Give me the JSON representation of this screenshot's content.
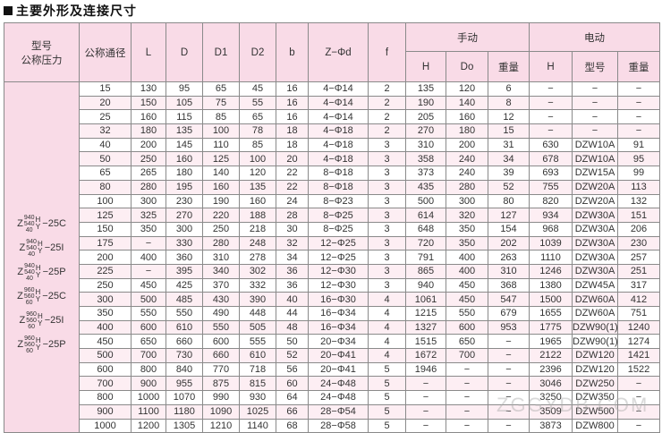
{
  "title": "主要外形及连接尺寸",
  "headers": {
    "model": "型号",
    "pressure": "公称压力",
    "dn": "公称通径",
    "L": "L",
    "D": "D",
    "D1": "D1",
    "D2": "D2",
    "b": "b",
    "zd": "Z−Φd",
    "f": "f",
    "manual": "手动",
    "electric": "电动",
    "H": "H",
    "Do": "Do",
    "weight": "重量",
    "etype": "型号"
  },
  "models": [
    {
      "z": "Z",
      "top": "940",
      "mid": "540",
      "bot": "40",
      "h": "H",
      "y": "Y",
      "suffix": "−25C"
    },
    {
      "z": "Z",
      "top": "940",
      "mid": "540",
      "bot": "40",
      "h": "H",
      "y": "Y",
      "suffix": "−25I"
    },
    {
      "z": "Z",
      "top": "940",
      "mid": "540",
      "bot": "40",
      "h": "H",
      "y": "Y",
      "suffix": "−25P"
    },
    {
      "z": "Z",
      "top": "960",
      "mid": "560",
      "bot": "60",
      "h": "H",
      "y": "Y",
      "suffix": "−25C"
    },
    {
      "z": "Z",
      "top": "960",
      "mid": "560",
      "bot": "60",
      "h": "H",
      "y": "Y",
      "suffix": "−25I"
    },
    {
      "z": "Z",
      "top": "960",
      "mid": "560",
      "bot": "60",
      "h": "H",
      "y": "Y",
      "suffix": "−25P"
    }
  ],
  "rows": [
    [
      "15",
      "130",
      "95",
      "65",
      "45",
      "16",
      "4−Φ14",
      "2",
      "135",
      "120",
      "6",
      "−",
      "−",
      "−"
    ],
    [
      "20",
      "150",
      "105",
      "75",
      "55",
      "16",
      "4−Φ14",
      "2",
      "190",
      "140",
      "8",
      "−",
      "−",
      "−"
    ],
    [
      "25",
      "160",
      "115",
      "85",
      "65",
      "16",
      "4−Φ14",
      "2",
      "205",
      "160",
      "12",
      "−",
      "−",
      "−"
    ],
    [
      "32",
      "180",
      "135",
      "100",
      "78",
      "18",
      "4−Φ18",
      "2",
      "270",
      "180",
      "15",
      "−",
      "−",
      "−"
    ],
    [
      "40",
      "200",
      "145",
      "110",
      "85",
      "18",
      "4−Φ18",
      "3",
      "310",
      "200",
      "31",
      "630",
      "DZW10A",
      "91"
    ],
    [
      "50",
      "250",
      "160",
      "125",
      "100",
      "20",
      "4−Φ18",
      "3",
      "358",
      "240",
      "34",
      "678",
      "DZW10A",
      "95"
    ],
    [
      "65",
      "265",
      "180",
      "140",
      "120",
      "22",
      "8−Φ18",
      "3",
      "373",
      "240",
      "39",
      "693",
      "DZW15A",
      "99"
    ],
    [
      "80",
      "280",
      "195",
      "160",
      "135",
      "22",
      "8−Φ18",
      "3",
      "435",
      "280",
      "52",
      "755",
      "DZW20A",
      "113"
    ],
    [
      "100",
      "300",
      "230",
      "190",
      "160",
      "24",
      "8−Φ23",
      "3",
      "500",
      "300",
      "80",
      "820",
      "DZW20A",
      "132"
    ],
    [
      "125",
      "325",
      "270",
      "220",
      "188",
      "28",
      "8−Φ25",
      "3",
      "614",
      "320",
      "127",
      "934",
      "DZW30A",
      "151"
    ],
    [
      "150",
      "350",
      "300",
      "250",
      "218",
      "30",
      "8−Φ25",
      "3",
      "648",
      "350",
      "154",
      "968",
      "DZW30A",
      "206"
    ],
    [
      "175",
      "−",
      "330",
      "280",
      "248",
      "32",
      "12−Φ25",
      "3",
      "720",
      "350",
      "202",
      "1039",
      "DZW30A",
      "230"
    ],
    [
      "200",
      "400",
      "360",
      "310",
      "278",
      "34",
      "12−Φ25",
      "3",
      "791",
      "400",
      "263",
      "1110",
      "DZW30A",
      "257"
    ],
    [
      "225",
      "−",
      "395",
      "340",
      "302",
      "36",
      "12−Φ30",
      "3",
      "865",
      "400",
      "310",
      "1246",
      "DZW30A",
      "251"
    ],
    [
      "250",
      "450",
      "425",
      "370",
      "332",
      "36",
      "12−Φ30",
      "3",
      "940",
      "450",
      "368",
      "1380",
      "DZW45A",
      "317"
    ],
    [
      "300",
      "500",
      "485",
      "430",
      "390",
      "40",
      "16−Φ30",
      "4",
      "1061",
      "450",
      "547",
      "1500",
      "DZW60A",
      "412"
    ],
    [
      "350",
      "550",
      "550",
      "490",
      "448",
      "44",
      "16−Φ34",
      "4",
      "1215",
      "550",
      "679",
      "1655",
      "DZW60A",
      "751"
    ],
    [
      "400",
      "600",
      "610",
      "550",
      "505",
      "48",
      "16−Φ34",
      "4",
      "1327",
      "600",
      "953",
      "1775",
      "DZW90(1)",
      "1240"
    ],
    [
      "450",
      "650",
      "660",
      "600",
      "555",
      "50",
      "20−Φ34",
      "4",
      "1515",
      "650",
      "−",
      "1965",
      "DZW90(1)",
      "1274"
    ],
    [
      "500",
      "700",
      "730",
      "660",
      "610",
      "52",
      "20−Φ41",
      "4",
      "1672",
      "700",
      "−",
      "2122",
      "DZW120",
      "1421"
    ],
    [
      "600",
      "800",
      "840",
      "770",
      "718",
      "56",
      "20−Φ41",
      "5",
      "1946",
      "−",
      "−",
      "2396",
      "DZW120",
      "1522"
    ],
    [
      "700",
      "900",
      "955",
      "875",
      "815",
      "60",
      "24−Φ48",
      "5",
      "−",
      "−",
      "−",
      "3046",
      "DZW250",
      "−"
    ],
    [
      "800",
      "1000",
      "1070",
      "990",
      "930",
      "64",
      "24−Φ48",
      "5",
      "−",
      "−",
      "−",
      "3250",
      "DZW350",
      "−"
    ],
    [
      "900",
      "1100",
      "1180",
      "1090",
      "1025",
      "66",
      "28−Φ54",
      "5",
      "−",
      "−",
      "−",
      "3509",
      "DZW500",
      "−"
    ],
    [
      "1000",
      "1200",
      "1305",
      "1210",
      "1140",
      "68",
      "28−Φ58",
      "5",
      "−",
      "−",
      "−",
      "3873",
      "DZW800",
      "−"
    ]
  ],
  "watermark": "ZGGYDB.COM"
}
